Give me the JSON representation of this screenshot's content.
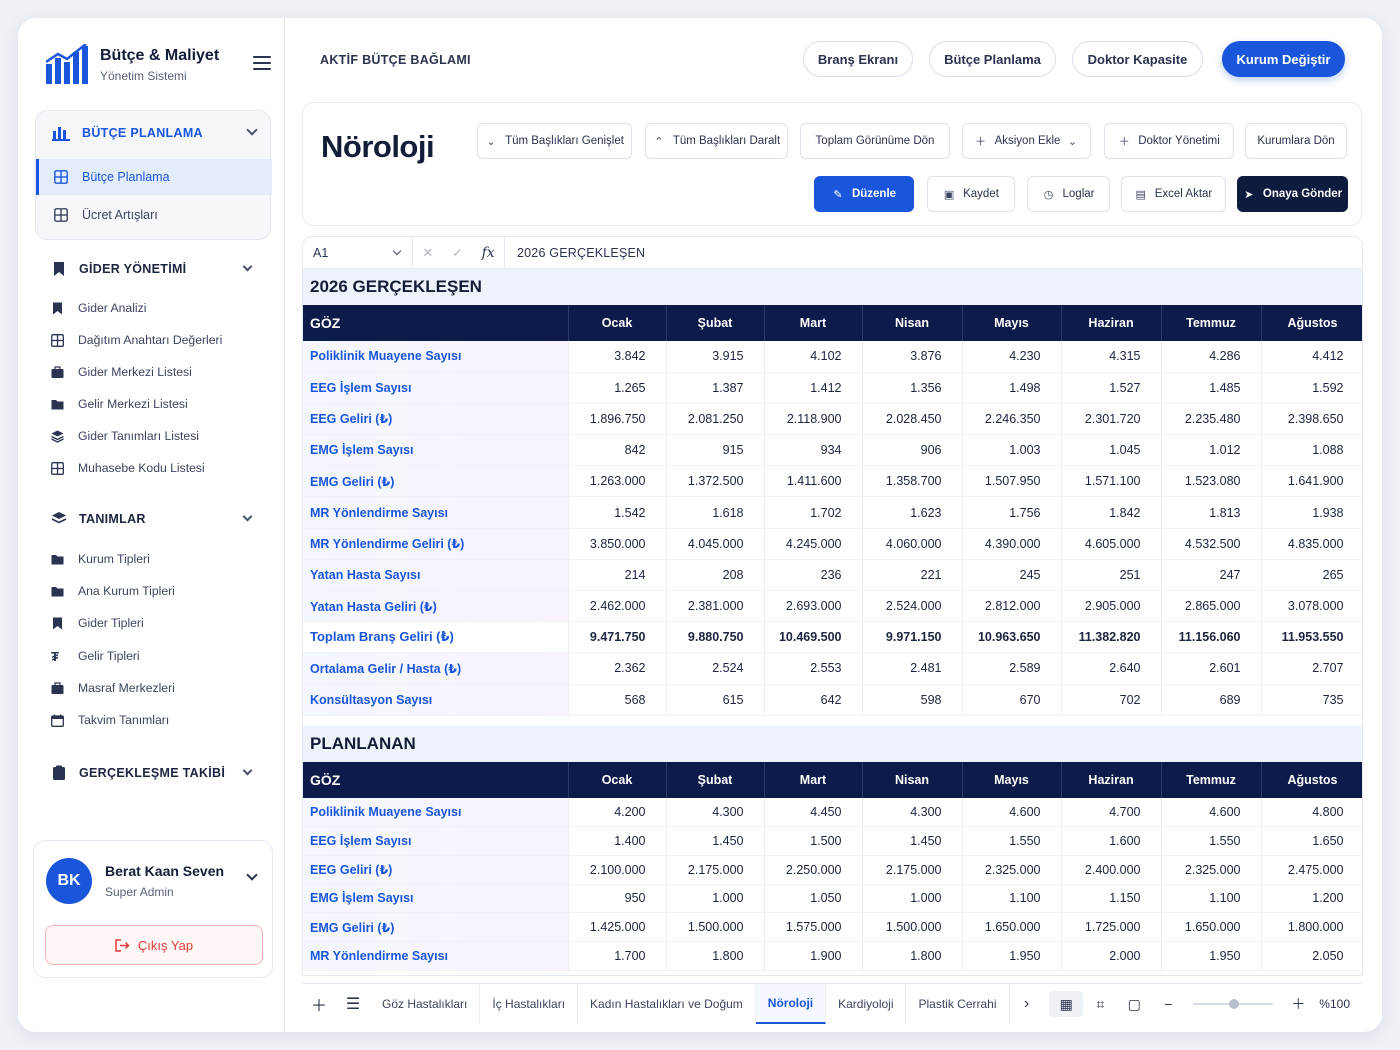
{
  "app": {
    "title": "Bütçe & Maliyet",
    "subtitle": "Yönetim Sistemi"
  },
  "sidebar": {
    "budget_group": {
      "label": "BÜTÇE PLANLAMA",
      "items": [
        {
          "label": "Bütçe Planlama",
          "active": true
        },
        {
          "label": "Ücret Artışları"
        }
      ]
    },
    "expense_group": {
      "label": "GİDER YÖNETİMİ",
      "items": [
        {
          "label": "Gider Analizi",
          "icon": "bookmark-icon"
        },
        {
          "label": "Dağıtım Anahtarı Değerleri",
          "icon": "grid-icon"
        },
        {
          "label": "Gider Merkezi Listesi",
          "icon": "briefcase-icon"
        },
        {
          "label": "Gelir Merkezi Listesi",
          "icon": "folder-icon"
        },
        {
          "label": "Gider Tanımları Listesi",
          "icon": "layers-icon"
        },
        {
          "label": "Muhasebe Kodu Listesi",
          "icon": "grid-icon"
        }
      ]
    },
    "definitions_group": {
      "label": "TANIMLAR",
      "items": [
        {
          "label": "Kurum Tipleri",
          "icon": "folder-icon"
        },
        {
          "label": "Ana Kurum Tipleri",
          "icon": "folder-icon"
        },
        {
          "label": "Gider Tipleri",
          "icon": "bookmark-icon"
        },
        {
          "label": "Gelir Tipleri",
          "icon": "currency-icon"
        },
        {
          "label": "Masraf Merkezleri",
          "icon": "briefcase-icon"
        },
        {
          "label": "Takvim Tanımları",
          "icon": "calendar-icon"
        }
      ]
    },
    "tracking_group": {
      "label": "GERÇEKLEŞME TAKİBİ"
    }
  },
  "user": {
    "initials": "BK",
    "name": "Berat Kaan Seven",
    "role": "Super Admin",
    "logout": "Çıkış Yap"
  },
  "topbar": {
    "context_label": "AKTİF BÜTÇE BAĞLAMI",
    "buttons": [
      "Branş Ekranı",
      "Bütçe Planlama",
      "Doktor Kapasite",
      "Kurum Değiştir"
    ]
  },
  "page": {
    "title": "Nöroloji",
    "toolbar_row1": [
      "Tüm Başlıkları Genişlet",
      "Tüm Başlıkları Daralt",
      "Toplam Görünüme Dön",
      "Aksiyon Ekle",
      "Doktor Yönetimi",
      "Kurumlara Dön"
    ],
    "toolbar_row2": [
      "Düzenle",
      "Kaydet",
      "Loglar",
      "Excel Aktar",
      "Onaya Gönder"
    ]
  },
  "formula_bar": {
    "cell": "A1",
    "value": "2026  GERÇEKLEŞEN"
  },
  "months": [
    "Ocak",
    "Şubat",
    "Mart",
    "Nisan",
    "Mayıs",
    "Haziran",
    "Temmuz",
    "Ağustos"
  ],
  "actual": {
    "title": "2026 GERÇEKLEŞEN",
    "header": "GÖZ",
    "rows": [
      {
        "label": "Poliklinik Muayene Sayısı",
        "values": [
          "3.842",
          "3.915",
          "4.102",
          "3.876",
          "4.230",
          "4.315",
          "4.286",
          "4.412"
        ]
      },
      {
        "label": "EEG İşlem Sayısı",
        "values": [
          "1.265",
          "1.387",
          "1.412",
          "1.356",
          "1.498",
          "1.527",
          "1.485",
          "1.592"
        ]
      },
      {
        "label": "EEG Geliri (₺)",
        "values": [
          "1.896.750",
          "2.081.250",
          "2.118.900",
          "2.028.450",
          "2.246.350",
          "2.301.720",
          "2.235.480",
          "2.398.650"
        ]
      },
      {
        "label": "EMG İşlem Sayısı",
        "values": [
          "842",
          "915",
          "934",
          "906",
          "1.003",
          "1.045",
          "1.012",
          "1.088"
        ]
      },
      {
        "label": "EMG Geliri (₺)",
        "values": [
          "1.263.000",
          "1.372.500",
          "1.411.600",
          "1.358.700",
          "1.507.950",
          "1.571.100",
          "1.523.080",
          "1.641.900"
        ]
      },
      {
        "label": "MR Yönlendirme Sayısı",
        "values": [
          "1.542",
          "1.618",
          "1.702",
          "1.623",
          "1.756",
          "1.842",
          "1.813",
          "1.938"
        ]
      },
      {
        "label": "MR Yönlendirme Geliri (₺)",
        "values": [
          "3.850.000",
          "4.045.000",
          "4.245.000",
          "4.060.000",
          "4.390.000",
          "4.605.000",
          "4.532.500",
          "4.835.000"
        ]
      },
      {
        "label": "Yatan Hasta Sayısı",
        "values": [
          "214",
          "208",
          "236",
          "221",
          "245",
          "251",
          "247",
          "265"
        ]
      },
      {
        "label": "Yatan Hasta Geliri (₺)",
        "values": [
          "2.462.000",
          "2.381.000",
          "2.693.000",
          "2.524.000",
          "2.812.000",
          "2.905.000",
          "2.865.000",
          "3.078.000"
        ]
      },
      {
        "label": "Toplam Branş Geliri (₺)",
        "total": true,
        "values": [
          "9.471.750",
          "9.880.750",
          "10.469.500",
          "9.971.150",
          "10.963.650",
          "11.382.820",
          "11.156.060",
          "11.953.550"
        ]
      },
      {
        "label": "Ortalama Gelir / Hasta (₺)",
        "values": [
          "2.362",
          "2.524",
          "2.553",
          "2.481",
          "2.589",
          "2.640",
          "2.601",
          "2.707"
        ]
      },
      {
        "label": "Konsültasyon Sayısı",
        "values": [
          "568",
          "615",
          "642",
          "598",
          "670",
          "702",
          "689",
          "735"
        ]
      }
    ]
  },
  "planned": {
    "title": "PLANLANAN",
    "header": "GÖZ",
    "rows": [
      {
        "label": "Poliklinik Muayene Sayısı",
        "values": [
          "4.200",
          "4.300",
          "4.450",
          "4.300",
          "4.600",
          "4.700",
          "4.600",
          "4.800"
        ]
      },
      {
        "label": "EEG İşlem Sayısı",
        "values": [
          "1.400",
          "1.450",
          "1.500",
          "1.450",
          "1.550",
          "1.600",
          "1.550",
          "1.650"
        ]
      },
      {
        "label": "EEG Geliri (₺)",
        "values": [
          "2.100.000",
          "2.175.000",
          "2.250.000",
          "2.175.000",
          "2.325.000",
          "2.400.000",
          "2.325.000",
          "2.475.000"
        ]
      },
      {
        "label": "EMG İşlem Sayısı",
        "values": [
          "950",
          "1.000",
          "1.050",
          "1.000",
          "1.100",
          "1.150",
          "1.100",
          "1.200"
        ]
      },
      {
        "label": "EMG Geliri (₺)",
        "values": [
          "1.425.000",
          "1.500.000",
          "1.575.000",
          "1.500.000",
          "1.650.000",
          "1.725.000",
          "1.650.000",
          "1.800.000"
        ]
      },
      {
        "label": "MR Yönlendirme Sayısı",
        "values": [
          "1.700",
          "1.800",
          "1.900",
          "1.800",
          "1.950",
          "2.000",
          "1.950",
          "2.050"
        ]
      }
    ]
  },
  "sheet_tabs": [
    "Göz Hastalıkları",
    "İç Hastalıkları",
    "Kadın Hastalıkları ve Doğum",
    "Nöroloji",
    "Kardiyoloji",
    "Plastik Cerrahi"
  ],
  "active_tab": "Nöroloji",
  "zoom": "%100",
  "colors": {
    "accent": "#1a56db",
    "header_navy": "#0d1b4a",
    "danger": "#e23c3c"
  }
}
